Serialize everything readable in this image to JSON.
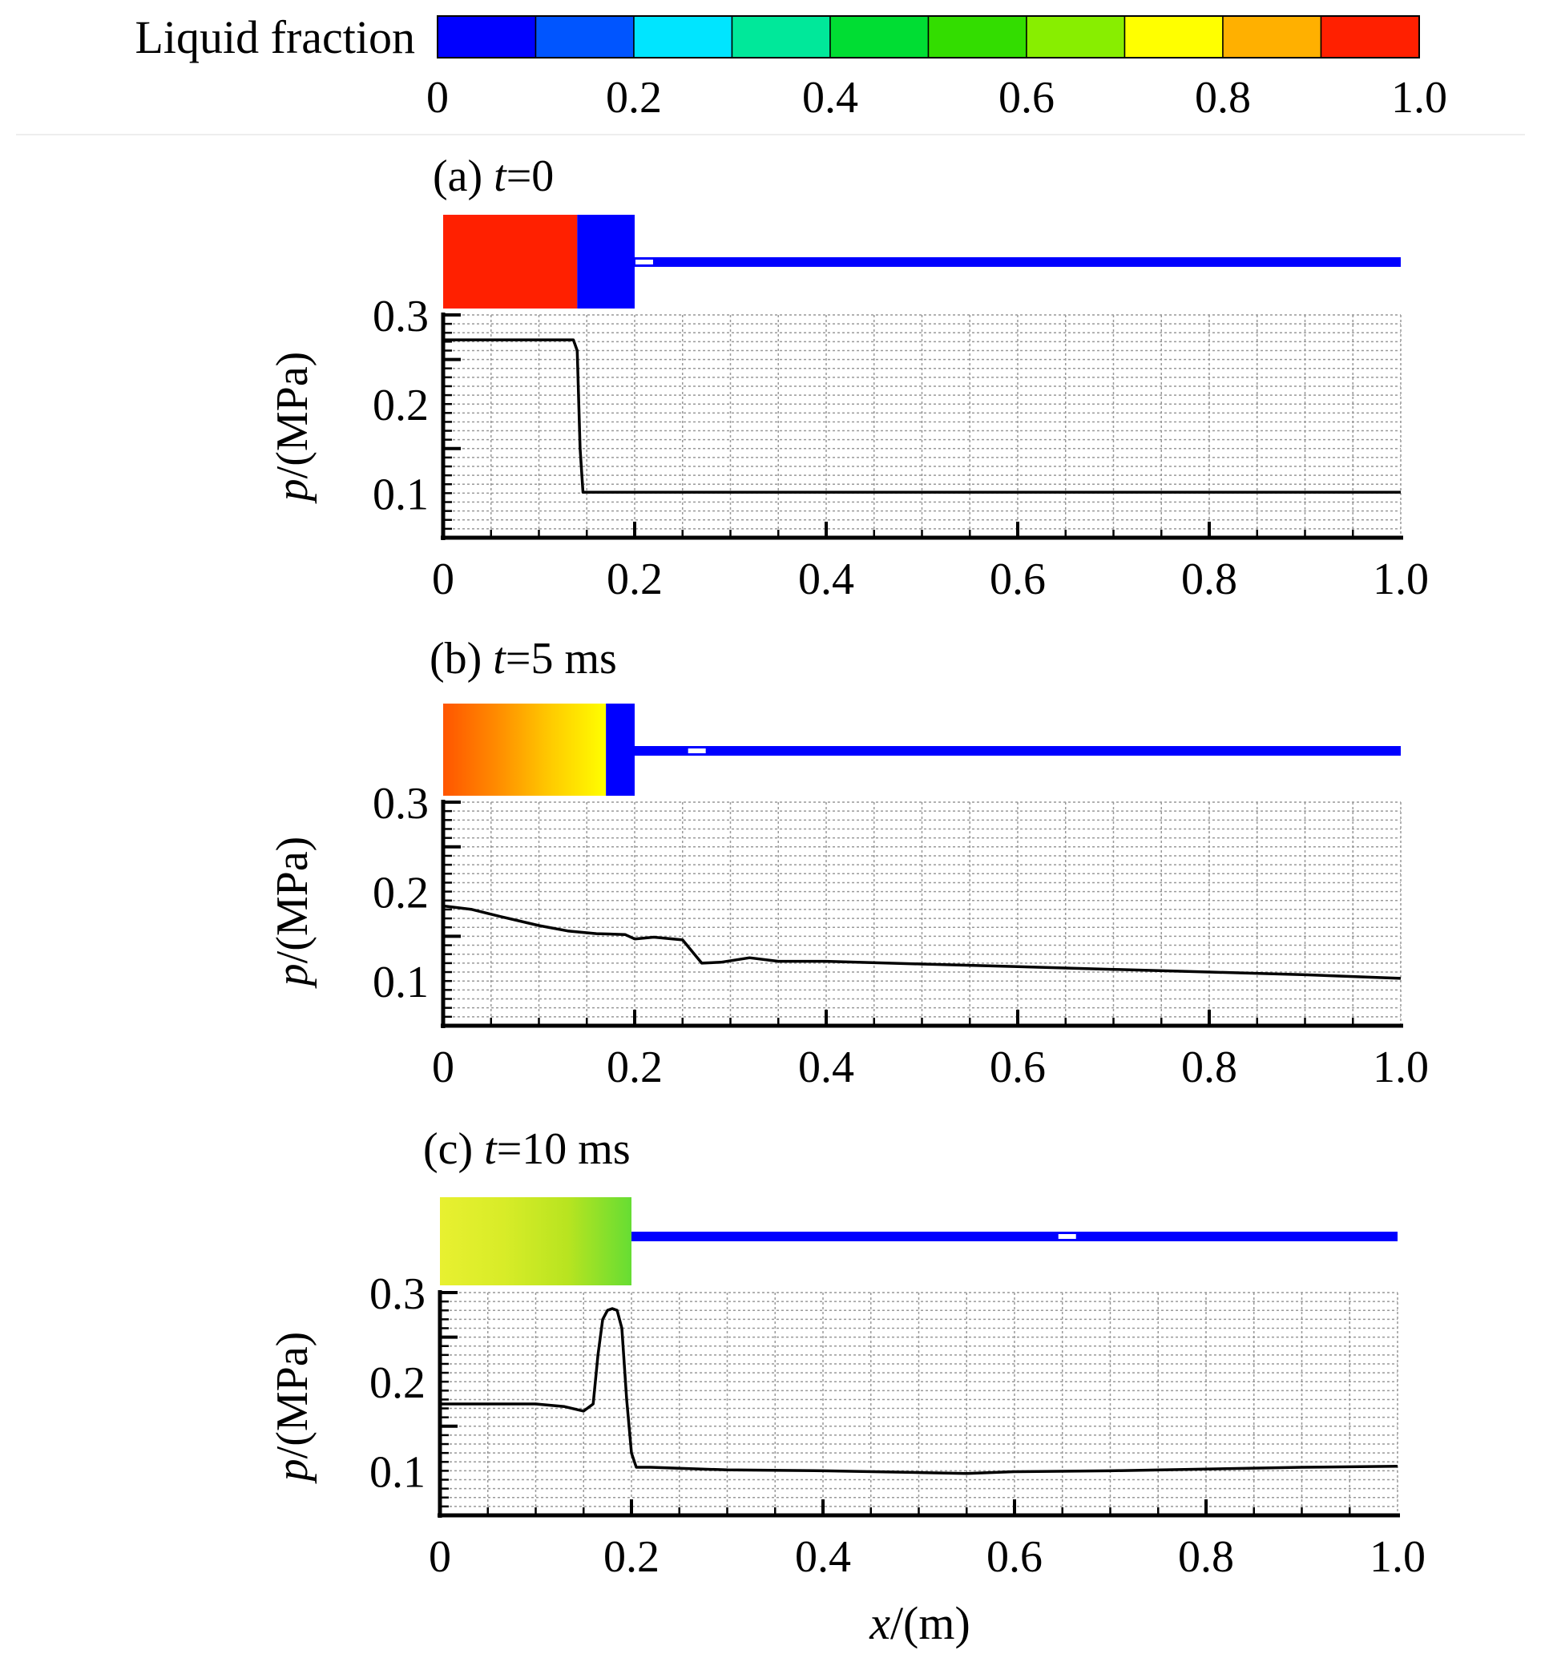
{
  "colorbar": {
    "title": "Liquid fraction",
    "ticks": [
      "0",
      "0.2",
      "0.4",
      "0.6",
      "0.8",
      "1.0"
    ],
    "tick_values": [
      0,
      0.2,
      0.4,
      0.6,
      0.8,
      1.0
    ],
    "levels": 10,
    "colors": [
      "#0000ff",
      "#0055ff",
      "#00e5ff",
      "#00e89a",
      "#00dd33",
      "#33dd00",
      "#88ee00",
      "#ffff00",
      "#ffb000",
      "#ff2000"
    ]
  },
  "xlabel_var": "x",
  "xlabel_unit": "/(m)",
  "chart_data": [
    {
      "type": "line",
      "panel_prefix": "(a) ",
      "panel_var": "t",
      "panel_value": "=0",
      "ylabel_var": "p",
      "ylabel_unit": "/(MPa)",
      "xlim": [
        0,
        1.0
      ],
      "ylim": [
        0.05,
        0.3
      ],
      "x_ticks": [
        "0",
        "0.2",
        "0.4",
        "0.6",
        "0.8",
        "1.0"
      ],
      "y_ticks": [
        "0.1",
        "0.2",
        "0.3"
      ],
      "grid": true,
      "series": [
        {
          "x": [
            0,
            0.136,
            0.14,
            0.143,
            0.146,
            0.2,
            0.4,
            0.6,
            0.8,
            1.0
          ],
          "y": [
            0.272,
            0.272,
            0.26,
            0.15,
            0.101,
            0.101,
            0.101,
            0.101,
            0.101,
            0.101
          ]
        }
      ],
      "contour": [
        {
          "from": 0,
          "to": 0.14,
          "color": "#ff2000"
        },
        {
          "from": 0.14,
          "to": 0.2,
          "color": "#0000ff"
        }
      ],
      "pipe_color": "#0000ff",
      "marker_x": 0.21
    },
    {
      "type": "line",
      "panel_prefix": "(b) ",
      "panel_var": "t",
      "panel_value": "=5 ms",
      "ylabel_var": "p",
      "ylabel_unit": "/(MPa)",
      "xlim": [
        0,
        1.0
      ],
      "ylim": [
        0.05,
        0.3
      ],
      "x_ticks": [
        "0",
        "0.2",
        "0.4",
        "0.6",
        "0.8",
        "1.0"
      ],
      "y_ticks": [
        "0.1",
        "0.2",
        "0.3"
      ],
      "grid": true,
      "series": [
        {
          "x": [
            0,
            0.03,
            0.06,
            0.1,
            0.13,
            0.16,
            0.19,
            0.2,
            0.22,
            0.25,
            0.27,
            0.29,
            0.32,
            0.35,
            0.4,
            0.5,
            0.6,
            0.7,
            0.8,
            0.9,
            1.0
          ],
          "y": [
            0.184,
            0.18,
            0.172,
            0.162,
            0.156,
            0.153,
            0.152,
            0.147,
            0.149,
            0.146,
            0.12,
            0.121,
            0.126,
            0.122,
            0.122,
            0.119,
            0.116,
            0.113,
            0.11,
            0.107,
            0.103
          ]
        }
      ],
      "contour": [
        {
          "from": 0,
          "to": 0.17,
          "gradient": [
            "#ff5500",
            "#ff8c00",
            "#ffcc00",
            "#ffff00"
          ]
        },
        {
          "from": 0.17,
          "to": 0.2,
          "color": "#0000ff"
        }
      ],
      "pipe_color": "#0000ff",
      "marker_x": 0.265
    },
    {
      "type": "line",
      "panel_prefix": "(c) ",
      "panel_var": "t",
      "panel_value": "=10 ms",
      "ylabel_var": "p",
      "ylabel_unit": "/(MPa)",
      "xlim": [
        0,
        1.0
      ],
      "ylim": [
        0.05,
        0.3
      ],
      "x_ticks": [
        "0",
        "0.2",
        "0.4",
        "0.6",
        "0.8",
        "1.0"
      ],
      "y_ticks": [
        "0.1",
        "0.2",
        "0.3"
      ],
      "grid": true,
      "series": [
        {
          "x": [
            0,
            0.05,
            0.1,
            0.13,
            0.15,
            0.16,
            0.165,
            0.17,
            0.175,
            0.18,
            0.185,
            0.19,
            0.195,
            0.2,
            0.205,
            0.22,
            0.3,
            0.4,
            0.5,
            0.55,
            0.6,
            0.7,
            0.8,
            0.9,
            1.0
          ],
          "y": [
            0.175,
            0.175,
            0.175,
            0.172,
            0.167,
            0.175,
            0.23,
            0.27,
            0.28,
            0.282,
            0.28,
            0.26,
            0.18,
            0.12,
            0.104,
            0.104,
            0.101,
            0.1,
            0.098,
            0.097,
            0.099,
            0.1,
            0.102,
            0.104,
            0.105
          ]
        }
      ],
      "contour": [
        {
          "from": 0,
          "to": 0.2,
          "gradient": [
            "#e8f030",
            "#d8ec28",
            "#b8e420",
            "#66dd33"
          ]
        }
      ],
      "pipe_color": "#0000ff",
      "marker_x": 0.655
    }
  ]
}
